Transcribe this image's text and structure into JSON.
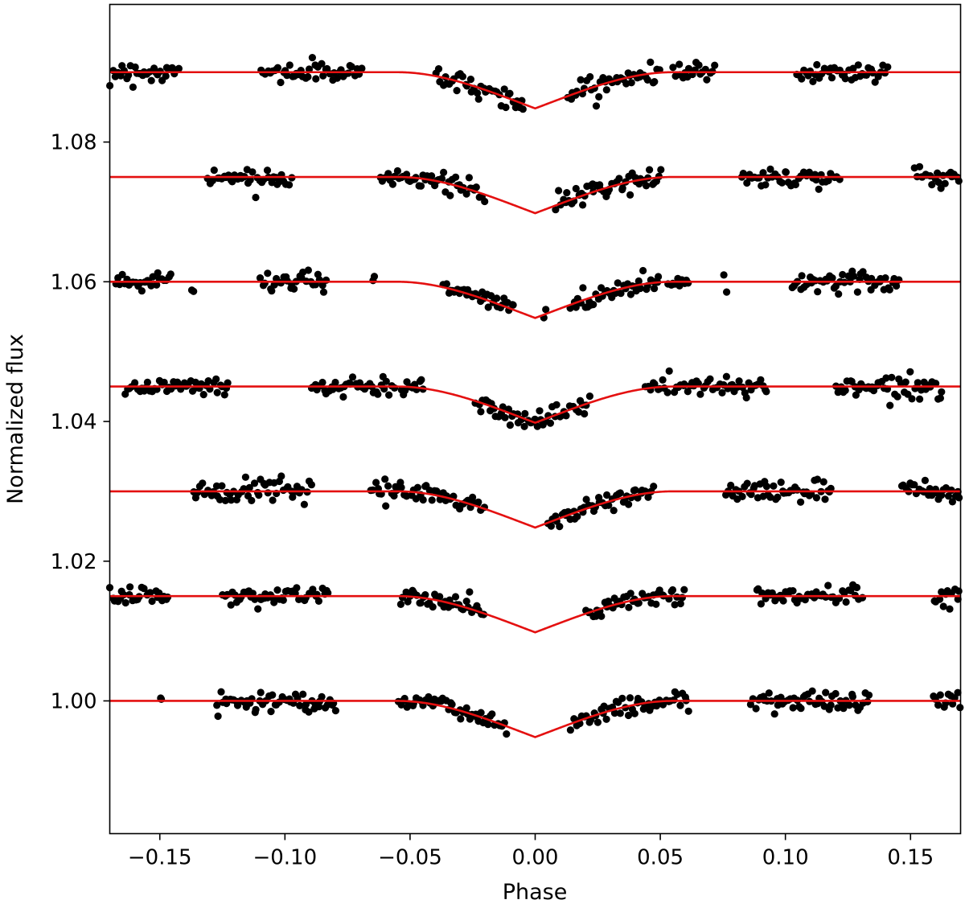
{
  "chart_data": {
    "type": "scatter",
    "title": "",
    "xlabel": "Phase",
    "ylabel": "Normalized flux",
    "xlim": [
      -0.17,
      0.17
    ],
    "ylim": [
      0.981,
      1.0997
    ],
    "x_ticks": [
      -0.15,
      -0.1,
      -0.05,
      0.0,
      0.05,
      0.1,
      0.15
    ],
    "x_tick_labels": [
      "−0.15",
      "−0.10",
      "−0.05",
      "0.00",
      "0.05",
      "0.10",
      "0.15"
    ],
    "y_ticks": [
      1.0,
      1.02,
      1.04,
      1.06,
      1.08
    ],
    "y_tick_labels": [
      "1.00",
      "1.02",
      "1.04",
      "1.06",
      "1.08"
    ],
    "grid": false,
    "colors": {
      "data_points": "#000000",
      "model": "#e41010"
    },
    "transit_model": {
      "ingress_start": -0.055,
      "ingress_end": -0.046,
      "egress_start": 0.046,
      "egress_end": 0.055,
      "depth": 0.0122,
      "limb_darkening_edge_fraction": 0.75,
      "noise_sigma": 0.0007
    },
    "series": [
      {
        "offset": 1.09,
        "observed_ranges": [
          [
            -0.17,
            -0.142
          ],
          [
            -0.11,
            -0.069
          ],
          [
            -0.04,
            -0.004
          ],
          [
            0.013,
            0.05
          ],
          [
            0.055,
            0.072
          ],
          [
            0.104,
            0.141
          ]
        ]
      },
      {
        "offset": 1.075,
        "observed_ranges": [
          [
            -0.131,
            -0.097
          ],
          [
            -0.062,
            -0.02
          ],
          [
            0.008,
            0.051
          ],
          [
            0.082,
            0.122
          ],
          [
            0.151,
            0.17
          ]
        ]
      },
      {
        "offset": 1.06,
        "observed_ranges": [
          [
            -0.168,
            -0.145
          ],
          [
            -0.138,
            -0.136
          ],
          [
            -0.11,
            -0.083
          ],
          [
            -0.065,
            -0.064
          ],
          [
            -0.037,
            -0.008
          ],
          [
            0.003,
            0.005
          ],
          [
            0.014,
            0.05
          ],
          [
            0.053,
            0.062
          ],
          [
            0.075,
            0.077
          ],
          [
            0.102,
            0.146
          ]
        ]
      },
      {
        "offset": 1.045,
        "observed_ranges": [
          [
            -0.164,
            -0.122
          ],
          [
            -0.09,
            -0.056
          ],
          [
            -0.054,
            -0.044
          ],
          [
            -0.024,
            0.022
          ],
          [
            0.044,
            0.054
          ],
          [
            0.055,
            0.093
          ],
          [
            0.12,
            0.163
          ]
        ]
      },
      {
        "offset": 1.03,
        "observed_ranges": [
          [
            -0.137,
            -0.089
          ],
          [
            -0.066,
            -0.051
          ],
          [
            -0.05,
            -0.02
          ],
          [
            0.005,
            0.048
          ],
          [
            0.076,
            0.119
          ],
          [
            0.146,
            0.17
          ]
        ]
      },
      {
        "offset": 1.015,
        "observed_ranges": [
          [
            -0.17,
            -0.146
          ],
          [
            -0.125,
            -0.082
          ],
          [
            -0.054,
            -0.02
          ],
          [
            0.02,
            0.052
          ],
          [
            0.053,
            0.06
          ],
          [
            0.088,
            0.131
          ],
          [
            0.159,
            0.17
          ]
        ]
      },
      {
        "offset": 1.0,
        "observed_ranges": [
          [
            -0.15,
            -0.149
          ],
          [
            -0.128,
            -0.079
          ],
          [
            -0.055,
            -0.011
          ],
          [
            0.014,
            0.05
          ],
          [
            0.051,
            0.062
          ],
          [
            0.086,
            0.134
          ],
          [
            0.159,
            0.17
          ]
        ]
      }
    ]
  }
}
